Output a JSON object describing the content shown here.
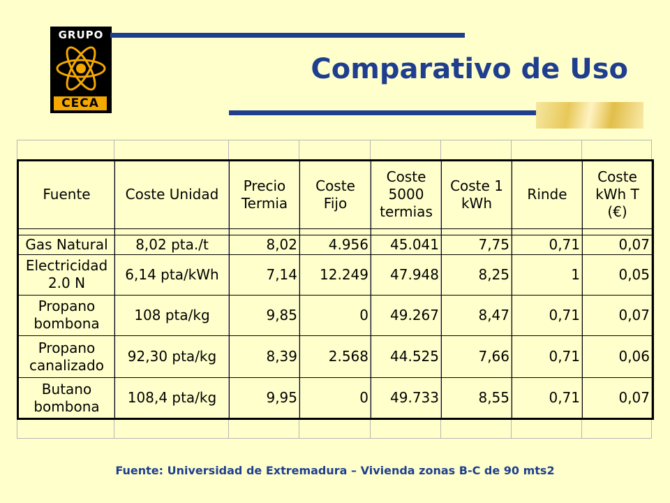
{
  "logo": {
    "top_text": "GRUPO",
    "bottom_text": "CECA",
    "colors": {
      "background": "#000000",
      "accent": "#f5a800"
    }
  },
  "header": {
    "title": "Comparativo de Uso"
  },
  "table": {
    "columns": [
      "Fuente",
      "Coste Unidad",
      "Precio Termia",
      "Coste Fijo",
      "Coste 5000 termias",
      "Coste 1 kWh",
      "Rinde",
      "Coste kWh T (€)"
    ],
    "rows": [
      [
        "Gas Natural",
        "8,02 pta./t",
        "8,02",
        "4.956",
        "45.041",
        "7,75",
        "0,71",
        "0,07"
      ],
      [
        "Electricidad 2.0 N",
        "6,14 pta/kWh",
        "7,14",
        "12.249",
        "47.948",
        "8,25",
        "1",
        "0,05"
      ],
      [
        "Propano bombona",
        "108 pta/kg",
        "9,85",
        "0",
        "49.267",
        "8,47",
        "0,71",
        "0,07"
      ],
      [
        "Propano canalizado",
        "92,30 pta/kg",
        "8,39",
        "2.568",
        "44.525",
        "7,66",
        "0,71",
        "0,06"
      ],
      [
        "Butano bombona",
        "108,4 pta/kg",
        "9,95",
        "0",
        "49.733",
        "8,55",
        "0,71",
        "0,07"
      ]
    ]
  },
  "footer": {
    "source": "Fuente: Universidad de Extremadura – Vivienda zonas B-C de 90 mts2"
  },
  "colors": {
    "background": "#ffffcc",
    "title": "#1f3f8e",
    "bars": "#1f3f8e"
  }
}
